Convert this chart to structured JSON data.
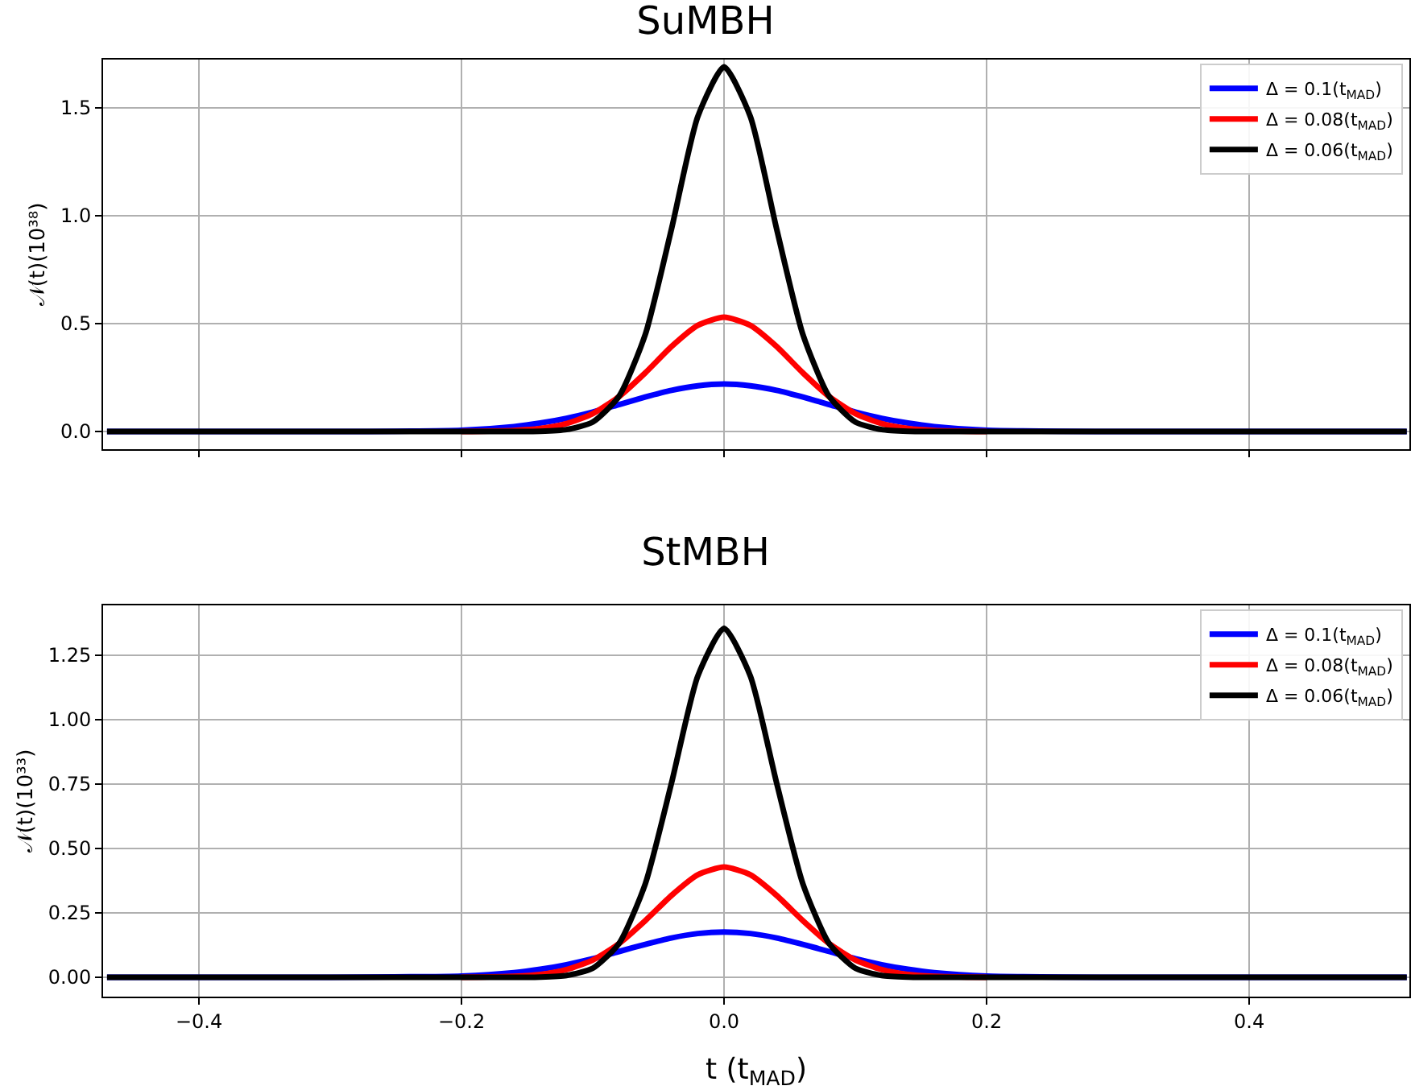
{
  "chart_data": [
    {
      "type": "line",
      "title": "SuMBH",
      "ylabel": "𝒩(t)(10³⁸)",
      "x": [
        -0.47,
        -0.3,
        -0.2,
        -0.16,
        -0.14,
        -0.12,
        -0.1,
        -0.08,
        -0.06,
        -0.04,
        -0.02,
        0,
        0.02,
        0.04,
        0.06,
        0.08,
        0.1,
        0.12,
        0.14,
        0.16,
        0.2,
        0.3,
        0.52
      ],
      "series": [
        {
          "name": "Δ = 0.1(t$_{MAD}$)",
          "color": "#0000ff",
          "values": [
            0,
            0,
            0.006,
            0.023,
            0.039,
            0.061,
            0.09,
            0.125,
            0.16,
            0.191,
            0.212,
            0.22,
            0.212,
            0.191,
            0.16,
            0.125,
            0.09,
            0.061,
            0.039,
            0.023,
            0.006,
            0,
            0
          ]
        },
        {
          "name": "Δ = 0.08(t$_{MAD}$)",
          "color": "#ff0000",
          "values": [
            null,
            null,
            0,
            0.005,
            0.014,
            0.037,
            0.083,
            0.162,
            0.272,
            0.394,
            0.492,
            0.53,
            0.492,
            0.394,
            0.272,
            0.162,
            0.083,
            0.037,
            0.014,
            0.005,
            0,
            null,
            null
          ]
        },
        {
          "name": "Δ = 0.06(t$_{MAD}$)",
          "color": "#000000",
          "values": [
            0,
            0,
            0,
            0,
            0.001,
            0.009,
            0.044,
            0.163,
            0.45,
            0.94,
            1.46,
            1.69,
            1.46,
            0.94,
            0.45,
            0.163,
            0.044,
            0.009,
            0.001,
            0,
            0,
            0,
            0
          ]
        }
      ],
      "xlim": [
        -0.473,
        0.522
      ],
      "ylim": [
        -0.082,
        1.724
      ],
      "xticks": [
        {
          "value": -0.4,
          "label": null
        },
        {
          "value": -0.2,
          "label": null
        },
        {
          "value": 0,
          "label": null
        },
        {
          "value": 0.2,
          "label": null
        },
        {
          "value": 0.4,
          "label": null
        }
      ],
      "yticks": [
        {
          "value": 0,
          "label": "0.0"
        },
        0.5,
        {
          "value": 1,
          "label": "1.0"
        },
        1.5
      ],
      "tick_labels": "y",
      "grid": true,
      "legend": "top right",
      "marker": "none",
      "line_style": "solid"
    },
    {
      "type": "line",
      "title": "StMBH",
      "xlabel": "t (t$_{MAD}$)",
      "ylabel": "𝒩(t)(10³³)",
      "x": [
        -0.47,
        -0.3,
        -0.2,
        -0.16,
        -0.14,
        -0.12,
        -0.1,
        -0.08,
        -0.06,
        -0.04,
        -0.02,
        0,
        0.02,
        0.04,
        0.06,
        0.08,
        0.1,
        0.12,
        0.14,
        0.16,
        0.2,
        0.3,
        0.52
      ],
      "series": [
        {
          "name": "Δ = 0.1(t$_{MAD}$)",
          "color": "#0000ff",
          "values": [
            0,
            0,
            0.005,
            0.018,
            0.031,
            0.049,
            0.072,
            0.1,
            0.128,
            0.153,
            0.17,
            0.176,
            0.17,
            0.153,
            0.128,
            0.1,
            0.072,
            0.049,
            0.031,
            0.018,
            0.005,
            0,
            0
          ]
        },
        {
          "name": "Δ = 0.08(t$_{MAD}$)",
          "color": "#ff0000",
          "values": [
            null,
            null,
            0,
            0.004,
            0.011,
            0.03,
            0.067,
            0.131,
            0.22,
            0.318,
            0.398,
            0.428,
            0.398,
            0.318,
            0.22,
            0.131,
            0.067,
            0.03,
            0.011,
            0.004,
            0,
            null,
            null
          ]
        },
        {
          "name": "Δ = 0.06(t$_{MAD}$)",
          "color": "#000000",
          "values": [
            0,
            0,
            0,
            0,
            0.001,
            0.007,
            0.035,
            0.131,
            0.363,
            0.755,
            1.17,
            1.355,
            1.17,
            0.755,
            0.363,
            0.131,
            0.035,
            0.007,
            0.001,
            0,
            0,
            0,
            0
          ]
        }
      ],
      "xlim": [
        -0.473,
        0.522
      ],
      "ylim": [
        -0.075,
        1.444
      ],
      "xticks": [
        {
          "value": -0.4,
          "label": "−0.4"
        },
        {
          "value": -0.2,
          "label": "−0.2"
        },
        {
          "value": 0,
          "label": "0.0"
        },
        {
          "value": 0.2,
          "label": "0.2"
        },
        {
          "value": 0.4,
          "label": "0.4"
        }
      ],
      "yticks": [
        {
          "value": 0,
          "label": "0.00"
        },
        0.25,
        {
          "value": 0.5,
          "label": "0.50"
        },
        0.75,
        {
          "value": 1,
          "label": "1.00"
        },
        1.25
      ],
      "grid": true,
      "legend": "top right",
      "marker": "none",
      "line_style": "solid"
    }
  ]
}
